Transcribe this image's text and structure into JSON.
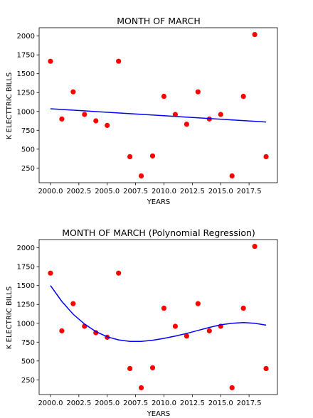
{
  "chart_data": [
    {
      "type": "scatter",
      "title": "MONTH OF MARCH",
      "xlabel": "YEARS",
      "ylabel": "K ELECTTRIC BILLS",
      "xlim": [
        1999.0,
        2020.0
      ],
      "ylim": [
        55,
        2110
      ],
      "xticks": [
        2000.0,
        2002.5,
        2005.0,
        2007.5,
        2010.0,
        2012.5,
        2015.0,
        2017.5
      ],
      "xtick_labels": [
        "2000.0",
        "2002.5",
        "2005.0",
        "2007.5",
        "2010.0",
        "2012.5",
        "2015.0",
        "2017.5"
      ],
      "yticks": [
        250,
        500,
        750,
        1000,
        1250,
        1500,
        1750,
        2000
      ],
      "ytick_labels": [
        "250",
        "500",
        "750",
        "1000",
        "1250",
        "1500",
        "1750",
        "2000"
      ],
      "grid": false,
      "series": [
        {
          "kind": "scatter",
          "color": "#ff0000",
          "x": [
            2000,
            2001,
            2002,
            2003,
            2004,
            2005,
            2006,
            2007,
            2008,
            2009,
            2010,
            2011,
            2012,
            2013,
            2014,
            2015,
            2016,
            2017,
            2018,
            2019
          ],
          "y": [
            1665,
            900,
            1260,
            960,
            875,
            815,
            1665,
            400,
            145,
            410,
            1200,
            960,
            830,
            1260,
            900,
            960,
            145,
            1200,
            2020,
            400
          ]
        },
        {
          "kind": "line",
          "color": "#0000ff",
          "x": [
            2000,
            2019
          ],
          "y": [
            1035,
            860
          ]
        }
      ]
    },
    {
      "type": "scatter",
      "title": "MONTH OF MARCH (Polynomial Regression)",
      "xlabel": "YEARS",
      "ylabel": "K ELECTRIC BILLS",
      "xlim": [
        1999.0,
        2020.0
      ],
      "ylim": [
        55,
        2110
      ],
      "xticks": [
        2000.0,
        2002.5,
        2005.0,
        2007.5,
        2010.0,
        2012.5,
        2015.0,
        2017.5
      ],
      "xtick_labels": [
        "2000.0",
        "2002.5",
        "2005.0",
        "2007.5",
        "2010.0",
        "2012.5",
        "2015.0",
        "2017.5"
      ],
      "yticks": [
        250,
        500,
        750,
        1000,
        1250,
        1500,
        1750,
        2000
      ],
      "ytick_labels": [
        "250",
        "500",
        "750",
        "1000",
        "1250",
        "1500",
        "1750",
        "2000"
      ],
      "grid": false,
      "series": [
        {
          "kind": "scatter",
          "color": "#ff0000",
          "x": [
            2000,
            2001,
            2002,
            2003,
            2004,
            2005,
            2006,
            2007,
            2008,
            2009,
            2010,
            2011,
            2012,
            2013,
            2014,
            2015,
            2016,
            2017,
            2018,
            2019
          ],
          "y": [
            1665,
            900,
            1260,
            960,
            875,
            815,
            1665,
            400,
            145,
            410,
            1200,
            960,
            830,
            1260,
            900,
            960,
            145,
            1200,
            2020,
            400
          ]
        },
        {
          "kind": "line",
          "color": "#0000ff",
          "x": [
            2000,
            2001,
            2002,
            2003,
            2004,
            2005,
            2006,
            2007,
            2008,
            2009,
            2010,
            2011,
            2012,
            2013,
            2014,
            2015,
            2016,
            2017,
            2018,
            2019
          ],
          "y": [
            1500,
            1290,
            1120,
            990,
            890,
            820,
            780,
            760,
            760,
            775,
            800,
            830,
            865,
            905,
            945,
            980,
            1000,
            1010,
            1000,
            975
          ]
        }
      ]
    }
  ]
}
